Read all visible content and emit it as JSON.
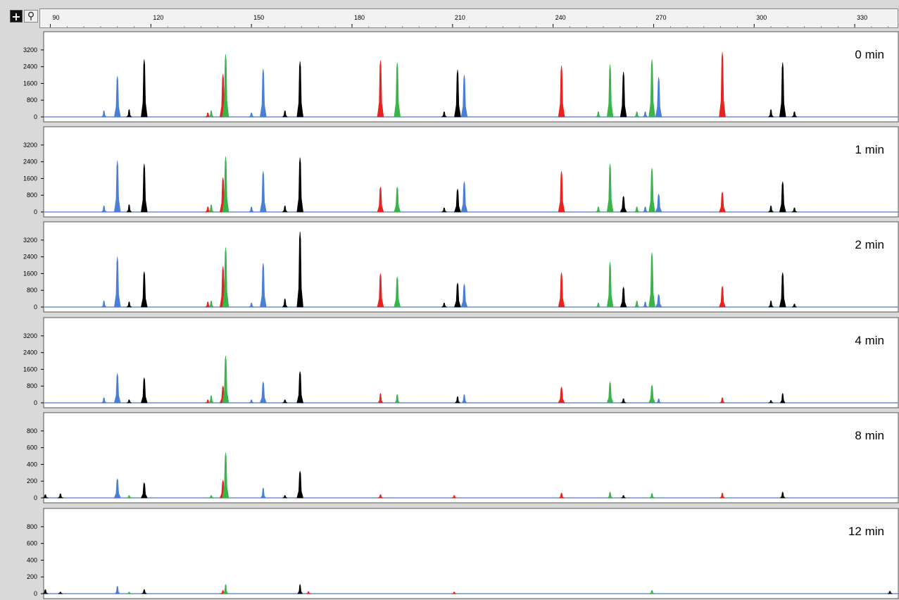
{
  "toolbar": {
    "crosshair_icon": "crosshair-icon",
    "zoom_icon": "magnifier-icon"
  },
  "colors": {
    "blue": "#4a7fd4",
    "green": "#38b449",
    "black": "#000000",
    "red": "#e8231d",
    "baseline": "#6f8fd8",
    "panel_bg": "#ffffff",
    "frame_bg": "#d9d9d9"
  },
  "chart_data": {
    "type": "line",
    "x_axis": {
      "ticks": [
        90,
        120,
        150,
        180,
        210,
        240,
        270,
        300,
        330
      ],
      "xlim": [
        88,
        343
      ]
    },
    "panels": [
      {
        "label": "0 min",
        "ylim": [
          0,
          3600
        ],
        "yticks": [
          0,
          800,
          1600,
          2400,
          3200
        ],
        "peaks": [
          {
            "x": 106,
            "h": 300,
            "c": "blue"
          },
          {
            "x": 110,
            "h": 1950,
            "c": "blue"
          },
          {
            "x": 113.5,
            "h": 350,
            "c": "black"
          },
          {
            "x": 118,
            "h": 2750,
            "c": "black"
          },
          {
            "x": 137,
            "h": 200,
            "c": "red"
          },
          {
            "x": 138,
            "h": 300,
            "c": "green"
          },
          {
            "x": 141.5,
            "h": 2050,
            "c": "red"
          },
          {
            "x": 142.3,
            "h": 3000,
            "c": "green"
          },
          {
            "x": 150,
            "h": 200,
            "c": "blue"
          },
          {
            "x": 153.5,
            "h": 2300,
            "c": "blue"
          },
          {
            "x": 160,
            "h": 300,
            "c": "black"
          },
          {
            "x": 164.5,
            "h": 2650,
            "c": "black"
          },
          {
            "x": 188.5,
            "h": 2700,
            "c": "red"
          },
          {
            "x": 193.5,
            "h": 2600,
            "c": "green"
          },
          {
            "x": 207.5,
            "h": 250,
            "c": "black"
          },
          {
            "x": 211.5,
            "h": 2250,
            "c": "black"
          },
          {
            "x": 213.5,
            "h": 2000,
            "c": "blue"
          },
          {
            "x": 242.5,
            "h": 2450,
            "c": "red"
          },
          {
            "x": 253.5,
            "h": 250,
            "c": "green"
          },
          {
            "x": 257,
            "h": 2500,
            "c": "green"
          },
          {
            "x": 261,
            "h": 2150,
            "c": "black"
          },
          {
            "x": 265,
            "h": 250,
            "c": "green"
          },
          {
            "x": 267.5,
            "h": 250,
            "c": "blue"
          },
          {
            "x": 269.5,
            "h": 2750,
            "c": "green"
          },
          {
            "x": 271.5,
            "h": 1900,
            "c": "blue"
          },
          {
            "x": 290.5,
            "h": 3100,
            "c": "red"
          },
          {
            "x": 305,
            "h": 350,
            "c": "black"
          },
          {
            "x": 308.5,
            "h": 2600,
            "c": "black"
          },
          {
            "x": 312,
            "h": 250,
            "c": "black"
          }
        ]
      },
      {
        "label": "1 min",
        "ylim": [
          0,
          3600
        ],
        "yticks": [
          0,
          800,
          1600,
          2400,
          3200
        ],
        "peaks": [
          {
            "x": 106,
            "h": 300,
            "c": "blue"
          },
          {
            "x": 110,
            "h": 2450,
            "c": "blue"
          },
          {
            "x": 113.5,
            "h": 350,
            "c": "black"
          },
          {
            "x": 118,
            "h": 2300,
            "c": "black"
          },
          {
            "x": 137,
            "h": 250,
            "c": "red"
          },
          {
            "x": 138,
            "h": 350,
            "c": "green"
          },
          {
            "x": 141.5,
            "h": 1650,
            "c": "red"
          },
          {
            "x": 142.3,
            "h": 2650,
            "c": "green"
          },
          {
            "x": 150,
            "h": 250,
            "c": "blue"
          },
          {
            "x": 153.5,
            "h": 1950,
            "c": "blue"
          },
          {
            "x": 160,
            "h": 300,
            "c": "black"
          },
          {
            "x": 164.5,
            "h": 2600,
            "c": "black"
          },
          {
            "x": 188.5,
            "h": 1200,
            "c": "red"
          },
          {
            "x": 193.5,
            "h": 1200,
            "c": "green"
          },
          {
            "x": 207.5,
            "h": 200,
            "c": "black"
          },
          {
            "x": 211.5,
            "h": 1100,
            "c": "black"
          },
          {
            "x": 213.5,
            "h": 1450,
            "c": "blue"
          },
          {
            "x": 242.5,
            "h": 1950,
            "c": "red"
          },
          {
            "x": 253.5,
            "h": 250,
            "c": "green"
          },
          {
            "x": 257,
            "h": 2300,
            "c": "green"
          },
          {
            "x": 261,
            "h": 750,
            "c": "black"
          },
          {
            "x": 265,
            "h": 250,
            "c": "green"
          },
          {
            "x": 267.5,
            "h": 250,
            "c": "blue"
          },
          {
            "x": 269.5,
            "h": 2100,
            "c": "green"
          },
          {
            "x": 271.5,
            "h": 850,
            "c": "blue"
          },
          {
            "x": 290.5,
            "h": 950,
            "c": "red"
          },
          {
            "x": 305,
            "h": 300,
            "c": "black"
          },
          {
            "x": 308.5,
            "h": 1450,
            "c": "black"
          },
          {
            "x": 312,
            "h": 200,
            "c": "black"
          }
        ]
      },
      {
        "label": "2 min",
        "ylim": [
          0,
          3600
        ],
        "yticks": [
          0,
          800,
          1600,
          2400,
          3200
        ],
        "peaks": [
          {
            "x": 106,
            "h": 300,
            "c": "blue"
          },
          {
            "x": 110,
            "h": 2400,
            "c": "blue"
          },
          {
            "x": 113.5,
            "h": 250,
            "c": "black"
          },
          {
            "x": 118,
            "h": 1700,
            "c": "black"
          },
          {
            "x": 137,
            "h": 250,
            "c": "red"
          },
          {
            "x": 138,
            "h": 300,
            "c": "green"
          },
          {
            "x": 141.5,
            "h": 1950,
            "c": "red"
          },
          {
            "x": 142.3,
            "h": 2850,
            "c": "green"
          },
          {
            "x": 150,
            "h": 200,
            "c": "blue"
          },
          {
            "x": 153.5,
            "h": 2100,
            "c": "blue"
          },
          {
            "x": 160,
            "h": 400,
            "c": "black"
          },
          {
            "x": 164.5,
            "h": 3600,
            "c": "black"
          },
          {
            "x": 188.5,
            "h": 1600,
            "c": "red"
          },
          {
            "x": 193.5,
            "h": 1450,
            "c": "green"
          },
          {
            "x": 207.5,
            "h": 200,
            "c": "black"
          },
          {
            "x": 211.5,
            "h": 1150,
            "c": "black"
          },
          {
            "x": 213.5,
            "h": 1100,
            "c": "blue"
          },
          {
            "x": 242.5,
            "h": 1650,
            "c": "red"
          },
          {
            "x": 253.5,
            "h": 200,
            "c": "green"
          },
          {
            "x": 257,
            "h": 2150,
            "c": "green"
          },
          {
            "x": 261,
            "h": 950,
            "c": "black"
          },
          {
            "x": 265,
            "h": 300,
            "c": "green"
          },
          {
            "x": 267.5,
            "h": 250,
            "c": "blue"
          },
          {
            "x": 269.5,
            "h": 2600,
            "c": "green"
          },
          {
            "x": 271.5,
            "h": 600,
            "c": "blue"
          },
          {
            "x": 290.5,
            "h": 1000,
            "c": "red"
          },
          {
            "x": 305,
            "h": 300,
            "c": "black"
          },
          {
            "x": 308.5,
            "h": 1650,
            "c": "black"
          },
          {
            "x": 312,
            "h": 150,
            "c": "black"
          }
        ]
      },
      {
        "label": "4 min",
        "ylim": [
          0,
          3600
        ],
        "yticks": [
          0,
          800,
          1600,
          2400,
          3200
        ],
        "peaks": [
          {
            "x": 106,
            "h": 250,
            "c": "blue"
          },
          {
            "x": 110,
            "h": 1400,
            "c": "blue"
          },
          {
            "x": 113.5,
            "h": 150,
            "c": "black"
          },
          {
            "x": 118,
            "h": 1200,
            "c": "black"
          },
          {
            "x": 137,
            "h": 150,
            "c": "red"
          },
          {
            "x": 138,
            "h": 350,
            "c": "green"
          },
          {
            "x": 141.5,
            "h": 800,
            "c": "red"
          },
          {
            "x": 142.3,
            "h": 2250,
            "c": "green"
          },
          {
            "x": 150,
            "h": 150,
            "c": "blue"
          },
          {
            "x": 153.5,
            "h": 1000,
            "c": "blue"
          },
          {
            "x": 160,
            "h": 150,
            "c": "black"
          },
          {
            "x": 164.5,
            "h": 1500,
            "c": "black"
          },
          {
            "x": 188.5,
            "h": 450,
            "c": "red"
          },
          {
            "x": 193.5,
            "h": 400,
            "c": "green"
          },
          {
            "x": 211.5,
            "h": 300,
            "c": "black"
          },
          {
            "x": 213.5,
            "h": 400,
            "c": "blue"
          },
          {
            "x": 242.5,
            "h": 750,
            "c": "red"
          },
          {
            "x": 257,
            "h": 1000,
            "c": "green"
          },
          {
            "x": 261,
            "h": 200,
            "c": "black"
          },
          {
            "x": 269.5,
            "h": 850,
            "c": "green"
          },
          {
            "x": 271.5,
            "h": 200,
            "c": "blue"
          },
          {
            "x": 290.5,
            "h": 250,
            "c": "red"
          },
          {
            "x": 305,
            "h": 120,
            "c": "black"
          },
          {
            "x": 308.5,
            "h": 450,
            "c": "black"
          }
        ]
      },
      {
        "label": "8 min",
        "ylim": [
          0,
          900
        ],
        "yticks": [
          0,
          200,
          400,
          600,
          800
        ],
        "peaks": [
          {
            "x": 88.5,
            "h": 40,
            "c": "black"
          },
          {
            "x": 93,
            "h": 50,
            "c": "black"
          },
          {
            "x": 110,
            "h": 230,
            "c": "blue"
          },
          {
            "x": 113.5,
            "h": 30,
            "c": "green"
          },
          {
            "x": 118,
            "h": 180,
            "c": "black"
          },
          {
            "x": 138,
            "h": 30,
            "c": "green"
          },
          {
            "x": 141.5,
            "h": 210,
            "c": "red"
          },
          {
            "x": 142.3,
            "h": 540,
            "c": "green"
          },
          {
            "x": 153.5,
            "h": 120,
            "c": "blue"
          },
          {
            "x": 160,
            "h": 30,
            "c": "black"
          },
          {
            "x": 164.5,
            "h": 320,
            "c": "black"
          },
          {
            "x": 188.5,
            "h": 40,
            "c": "red"
          },
          {
            "x": 210.5,
            "h": 30,
            "c": "red"
          },
          {
            "x": 242.5,
            "h": 60,
            "c": "red"
          },
          {
            "x": 257,
            "h": 70,
            "c": "green"
          },
          {
            "x": 261,
            "h": 30,
            "c": "black"
          },
          {
            "x": 269.5,
            "h": 55,
            "c": "green"
          },
          {
            "x": 290.5,
            "h": 60,
            "c": "red"
          },
          {
            "x": 308.5,
            "h": 70,
            "c": "black"
          }
        ]
      },
      {
        "label": "12 min",
        "ylim": [
          0,
          900
        ],
        "yticks": [
          0,
          200,
          400,
          600,
          800
        ],
        "peaks": [
          {
            "x": 88.5,
            "h": 50,
            "c": "black"
          },
          {
            "x": 93,
            "h": 20,
            "c": "black"
          },
          {
            "x": 110,
            "h": 90,
            "c": "blue"
          },
          {
            "x": 113.5,
            "h": 20,
            "c": "green"
          },
          {
            "x": 118,
            "h": 50,
            "c": "black"
          },
          {
            "x": 141.5,
            "h": 40,
            "c": "red"
          },
          {
            "x": 142.3,
            "h": 110,
            "c": "green"
          },
          {
            "x": 164.5,
            "h": 110,
            "c": "black"
          },
          {
            "x": 167,
            "h": 25,
            "c": "red"
          },
          {
            "x": 210.5,
            "h": 20,
            "c": "red"
          },
          {
            "x": 269.5,
            "h": 40,
            "c": "green"
          },
          {
            "x": 340.5,
            "h": 30,
            "c": "black"
          }
        ]
      }
    ]
  }
}
